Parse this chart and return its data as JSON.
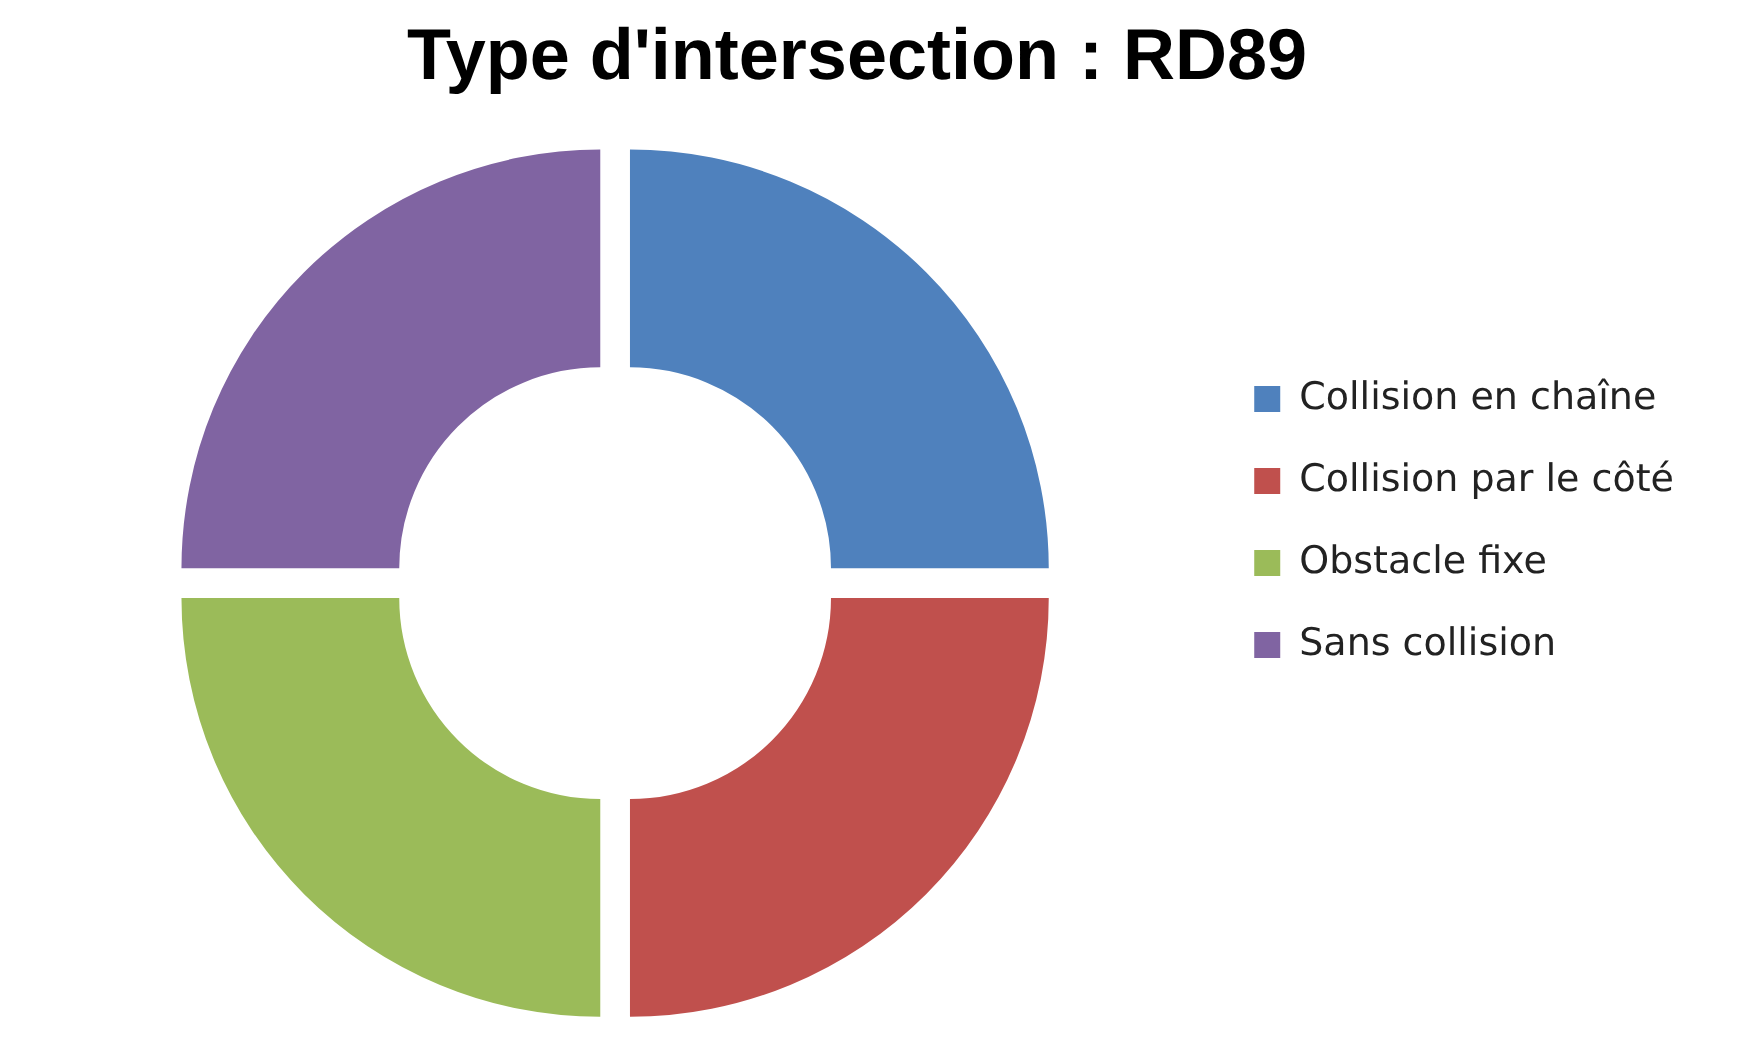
{
  "chart_data": {
    "type": "donut",
    "title": "Type d'intersection : RD89",
    "categories": [
      "Collision en chaîne",
      "Collision par le côté",
      "Obstacle fixe",
      "Sans collision"
    ],
    "values": [
      25,
      25,
      25,
      25
    ],
    "colors": [
      "#4f81bd",
      "#c0504d",
      "#9bbb59",
      "#8064a2"
    ],
    "legend": "right"
  }
}
